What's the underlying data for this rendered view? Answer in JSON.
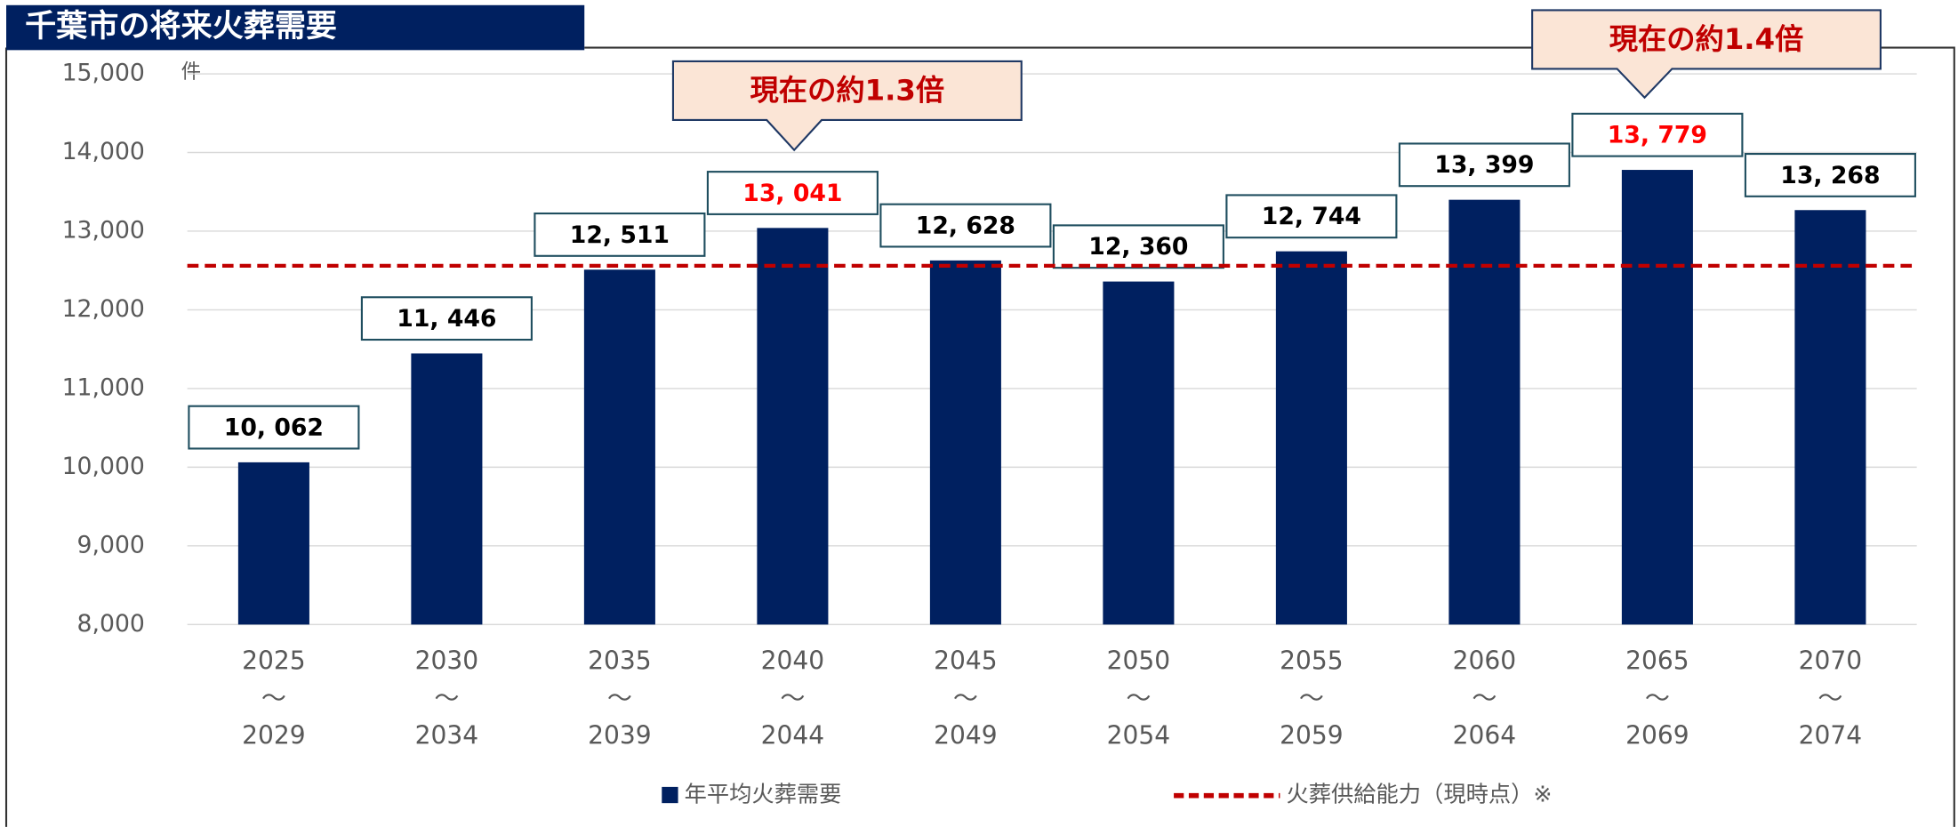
{
  "chart_data": {
    "type": "bar",
    "title": "千葉市の将来火葬需要",
    "unit_label": "件",
    "categories": [
      [
        "2025",
        "～",
        "2029"
      ],
      [
        "2030",
        "～",
        "2034"
      ],
      [
        "2035",
        "～",
        "2039"
      ],
      [
        "2040",
        "～",
        "2044"
      ],
      [
        "2045",
        "～",
        "2049"
      ],
      [
        "2050",
        "～",
        "2054"
      ],
      [
        "2055",
        "～",
        "2059"
      ],
      [
        "2060",
        "～",
        "2064"
      ],
      [
        "2065",
        "～",
        "2069"
      ],
      [
        "2070",
        "～",
        "2074"
      ]
    ],
    "series": [
      {
        "name": "年平均火葬需要",
        "color": "#002060",
        "values": [
          10062,
          11446,
          12511,
          13041,
          12628,
          12360,
          12744,
          13399,
          13779,
          13268
        ],
        "value_labels": [
          "10, 062",
          "11, 446",
          "12, 511",
          "13, 041",
          "12, 628",
          "12, 360",
          "12, 744",
          "13, 399",
          "13, 779",
          "13, 268"
        ],
        "value_label_colors": [
          "#000000",
          "#000000",
          "#000000",
          "#ff0000",
          "#000000",
          "#000000",
          "#000000",
          "#000000",
          "#ff0000",
          "#000000"
        ]
      }
    ],
    "reference_line": {
      "name": "火葬供給能力（現時点）※",
      "value": 12560,
      "color": "#c00000"
    },
    "annotations": [
      {
        "text": "現在の約1.3倍"
      },
      {
        "text": "現在の約1.4倍"
      }
    ],
    "ylim": [
      8000,
      15000
    ],
    "yticks": [
      {
        "value": 8000,
        "label": "8,000"
      },
      {
        "value": 9000,
        "label": "9,000"
      },
      {
        "value": 10000,
        "label": "10,000"
      },
      {
        "value": 11000,
        "label": "11,000"
      },
      {
        "value": 12000,
        "label": "12,000"
      },
      {
        "value": 13000,
        "label": "13,000"
      },
      {
        "value": 14000,
        "label": "14,000"
      },
      {
        "value": 15000,
        "label": "15,000"
      }
    ],
    "grid": true
  }
}
